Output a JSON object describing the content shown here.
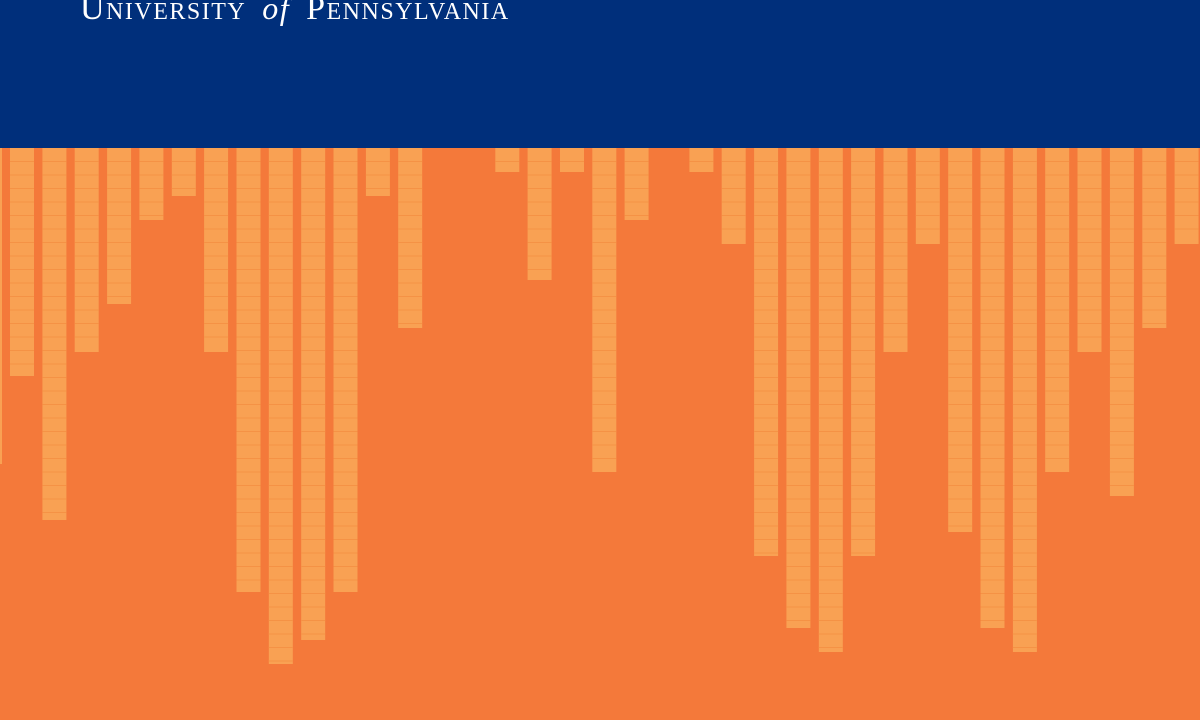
{
  "brand": {
    "word1": "University",
    "word2": "of",
    "word3": "Pennsylvania"
  },
  "colors": {
    "header": "#002F7B",
    "background": "#F4793A",
    "bar": "#F9A153",
    "bar_line": "#F59245",
    "text": "#FFFFFF"
  },
  "bars": [
    {
      "level": 0.19
    },
    {
      "level": 0.31
    },
    {
      "level": 0.17
    },
    {
      "level": 0.13
    },
    {
      "level": 0.06
    },
    {
      "level": 0.04
    },
    {
      "level": 0.17
    },
    {
      "level": 0.37
    },
    {
      "level": 0.43
    },
    {
      "level": 0.41
    },
    {
      "level": 0.37
    },
    {
      "level": 0.04
    },
    {
      "level": 0.15
    },
    {
      "level": 0
    },
    {
      "level": 0
    },
    {
      "level": 0.02
    },
    {
      "level": 0.11
    },
    {
      "level": 0.02
    },
    {
      "level": 0.27
    },
    {
      "level": 0.06
    },
    {
      "level": 0
    },
    {
      "level": 0.02
    },
    {
      "level": 0.08
    },
    {
      "level": 0.34
    },
    {
      "level": 0.4
    },
    {
      "level": 0.42
    },
    {
      "level": 0.34
    },
    {
      "level": 0.17
    },
    {
      "level": 0.08
    },
    {
      "level": 0.32
    },
    {
      "level": 0.4
    },
    {
      "level": 0.42
    },
    {
      "level": 0.27
    },
    {
      "level": 0.17
    },
    {
      "level": 0.29
    },
    {
      "level": 0.15
    },
    {
      "level": 0.08
    },
    {
      "level": 0.02
    }
  ]
}
